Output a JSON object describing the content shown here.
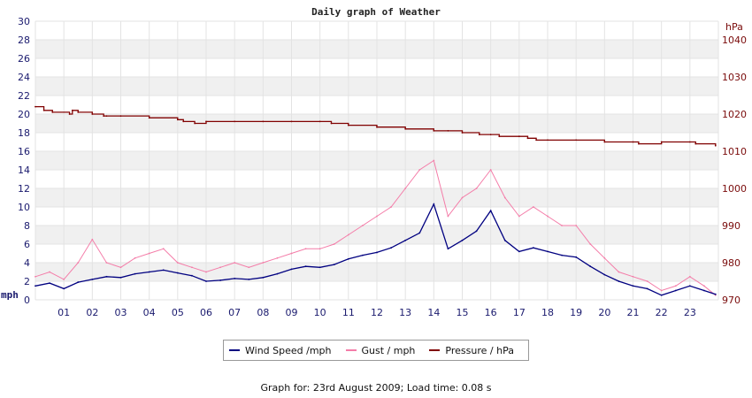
{
  "chart_data": {
    "type": "line",
    "title": "Daily graph of Weather",
    "left_axis": {
      "unit": "mph",
      "ylim": [
        0,
        30
      ],
      "ticks": [
        0,
        2,
        4,
        6,
        8,
        10,
        12,
        14,
        16,
        18,
        20,
        22,
        24,
        26,
        28,
        30
      ]
    },
    "right_axis": {
      "unit": "hPa",
      "ylim": [
        970,
        1045
      ],
      "ticks": [
        970,
        980,
        990,
        1000,
        1010,
        1020,
        1030,
        1040
      ]
    },
    "x_ticks": [
      "01",
      "02",
      "03",
      "04",
      "05",
      "06",
      "07",
      "08",
      "09",
      "10",
      "11",
      "12",
      "13",
      "14",
      "15",
      "16",
      "17",
      "18",
      "19",
      "20",
      "21",
      "22",
      "23"
    ],
    "xlim": [
      0,
      24
    ],
    "grid": true,
    "legend_position": "bottom",
    "series": [
      {
        "name": "Wind Speed /mph",
        "color": "#000080",
        "axis": "left",
        "x": [
          0,
          0.5,
          1,
          1.5,
          2,
          2.5,
          3,
          3.5,
          4,
          4.5,
          5,
          5.5,
          6,
          6.5,
          7,
          7.5,
          8,
          8.5,
          9,
          9.5,
          10,
          10.5,
          11,
          11.5,
          12,
          12.5,
          13,
          13.5,
          14,
          14.5,
          15,
          15.5,
          16,
          16.5,
          17,
          17.5,
          18,
          18.5,
          19,
          19.5,
          20,
          20.5,
          21,
          21.5,
          22,
          22.5,
          23,
          23.5,
          23.9
        ],
        "values": [
          1.5,
          1.8,
          1.2,
          1.9,
          2.2,
          2.5,
          2.4,
          2.8,
          3.0,
          3.2,
          2.9,
          2.6,
          2.0,
          2.1,
          2.3,
          2.2,
          2.4,
          2.8,
          3.3,
          3.6,
          3.5,
          3.8,
          4.4,
          4.8,
          5.1,
          5.6,
          6.4,
          7.2,
          10.3,
          5.5,
          6.4,
          7.4,
          9.6,
          6.4,
          5.2,
          5.6,
          5.2,
          4.8,
          4.6,
          3.6,
          2.7,
          2.0,
          1.5,
          1.2,
          0.5,
          1.0,
          1.5,
          1.0,
          0.6
        ]
      },
      {
        "name": "Gust / mph",
        "color": "#f47ca8",
        "axis": "left",
        "x": [
          0,
          0.5,
          1,
          1.5,
          2,
          2.5,
          3,
          3.5,
          4,
          4.5,
          5,
          5.5,
          6,
          6.5,
          7,
          7.5,
          8,
          8.5,
          9,
          9.5,
          10,
          10.5,
          11,
          11.5,
          12,
          12.5,
          13,
          13.5,
          14,
          14.5,
          15,
          15.5,
          16,
          16.5,
          17,
          17.5,
          18,
          18.5,
          19,
          19.5,
          20,
          20.5,
          21,
          21.5,
          22,
          22.5,
          23,
          23.5,
          23.9
        ],
        "values": [
          2.5,
          3.0,
          2.2,
          4.0,
          6.5,
          4.0,
          3.5,
          4.5,
          5.0,
          5.5,
          4.0,
          3.5,
          3.0,
          3.5,
          4.0,
          3.5,
          4.0,
          4.5,
          5.0,
          5.5,
          5.5,
          6.0,
          7.0,
          8.0,
          9.0,
          10.0,
          12.0,
          14.0,
          15.0,
          9.0,
          11.0,
          12.0,
          14.0,
          11.0,
          9.0,
          10.0,
          9.0,
          8.0,
          8.0,
          6.0,
          4.5,
          3.0,
          2.5,
          2.0,
          1.0,
          1.5,
          2.5,
          1.5,
          0.5
        ]
      },
      {
        "name": "Pressure / hPa",
        "color": "#800000",
        "axis": "right",
        "x": [
          0,
          0.3,
          0.6,
          1.2,
          1.3,
          1.5,
          2,
          2.4,
          2.5,
          3,
          4,
          5,
          5.2,
          5.6,
          6,
          7,
          8,
          9,
          10,
          10.4,
          11,
          12,
          13,
          14,
          14.5,
          15,
          15.6,
          16,
          16.3,
          17,
          17.3,
          17.6,
          18,
          19,
          20,
          21,
          21.2,
          22,
          23,
          23.2,
          23.9
        ],
        "values": [
          1022,
          1021,
          1020.5,
          1020,
          1021,
          1020.5,
          1020,
          1019.5,
          1019.5,
          1019.5,
          1019,
          1018.5,
          1018,
          1017.5,
          1018,
          1018,
          1018,
          1018,
          1018,
          1017.5,
          1017,
          1016.5,
          1016,
          1015.5,
          1015.5,
          1015,
          1014.5,
          1014.5,
          1014,
          1014,
          1013.5,
          1013,
          1013,
          1013,
          1012.5,
          1012.5,
          1012,
          1012.5,
          1012.5,
          1012,
          1011.5
        ]
      }
    ]
  },
  "footer": {
    "text": "Graph for: 23rd August 2009; Load time: 0.08 s"
  }
}
